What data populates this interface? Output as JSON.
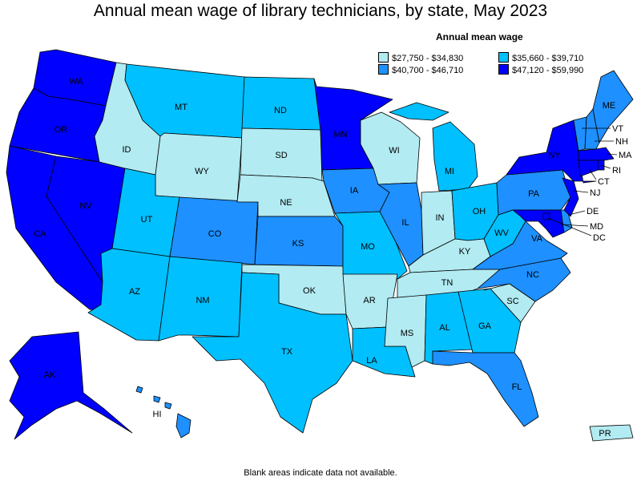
{
  "title": "Annual mean wage of library technicians, by state, May 2023",
  "legend": {
    "title": "Annual mean wage",
    "items": [
      {
        "label": "$27,750 - $34,830",
        "color": "#b2ebf2"
      },
      {
        "label": "$35,660 - $39,710",
        "color": "#00c0ff"
      },
      {
        "label": "$40,700 - $46,710",
        "color": "#1e90ff"
      },
      {
        "label": "$47,120 - $59,990",
        "color": "#0000ff"
      }
    ]
  },
  "footer": "Blank areas indicate data not available.",
  "states": {
    "WA": {
      "label": "WA",
      "bin": 3
    },
    "OR": {
      "label": "OR",
      "bin": 3
    },
    "CA": {
      "label": "CA",
      "bin": 3
    },
    "NV": {
      "label": "NV",
      "bin": 3
    },
    "ID": {
      "label": "ID",
      "bin": 0
    },
    "MT": {
      "label": "MT",
      "bin": 1
    },
    "WY": {
      "label": "WY",
      "bin": 0
    },
    "UT": {
      "label": "UT",
      "bin": 1
    },
    "AZ": {
      "label": "AZ",
      "bin": 1
    },
    "CO": {
      "label": "CO",
      "bin": 2
    },
    "NM": {
      "label": "NM",
      "bin": 1
    },
    "ND": {
      "label": "ND",
      "bin": 1
    },
    "SD": {
      "label": "SD",
      "bin": 0
    },
    "NE": {
      "label": "NE",
      "bin": 0
    },
    "KS": {
      "label": "KS",
      "bin": 2
    },
    "OK": {
      "label": "OK",
      "bin": 0
    },
    "TX": {
      "label": "TX",
      "bin": 1
    },
    "MN": {
      "label": "MN",
      "bin": 3
    },
    "IA": {
      "label": "IA",
      "bin": 2
    },
    "MO": {
      "label": "MO",
      "bin": 1
    },
    "AR": {
      "label": "AR",
      "bin": 0
    },
    "LA": {
      "label": "LA",
      "bin": 1
    },
    "WI": {
      "label": "WI",
      "bin": 0
    },
    "IL": {
      "label": "IL",
      "bin": 2
    },
    "MI": {
      "label": "MI",
      "bin": 1
    },
    "IN": {
      "label": "IN",
      "bin": 0
    },
    "OH": {
      "label": "OH",
      "bin": 1
    },
    "KY": {
      "label": "KY",
      "bin": 0
    },
    "TN": {
      "label": "TN",
      "bin": 0
    },
    "MS": {
      "label": "MS",
      "bin": 0
    },
    "AL": {
      "label": "AL",
      "bin": 1
    },
    "GA": {
      "label": "GA",
      "bin": 1
    },
    "FL": {
      "label": "FL",
      "bin": 2
    },
    "SC": {
      "label": "SC",
      "bin": 0
    },
    "NC": {
      "label": "NC",
      "bin": 2
    },
    "VA": {
      "label": "VA",
      "bin": 2
    },
    "WV": {
      "label": "WV",
      "bin": 1
    },
    "PA": {
      "label": "PA",
      "bin": 2
    },
    "NY": {
      "label": "NY",
      "bin": 3
    },
    "VT": {
      "label": "VT",
      "bin": 2
    },
    "NH": {
      "label": "NH",
      "bin": 2
    },
    "ME": {
      "label": "ME",
      "bin": 2
    },
    "MA": {
      "label": "MA",
      "bin": 3
    },
    "RI": {
      "label": "RI",
      "bin": 3
    },
    "CT": {
      "label": "CT",
      "bin": 3
    },
    "NJ": {
      "label": "NJ",
      "bin": 3
    },
    "DE": {
      "label": "DE",
      "bin": 2
    },
    "MD": {
      "label": "MD",
      "bin": 3
    },
    "DC": {
      "label": "DC",
      "bin": 3
    },
    "AK": {
      "label": "AK",
      "bin": 3
    },
    "HI": {
      "label": "HI",
      "bin": 2
    },
    "PR": {
      "label": "PR",
      "bin": 0
    }
  }
}
